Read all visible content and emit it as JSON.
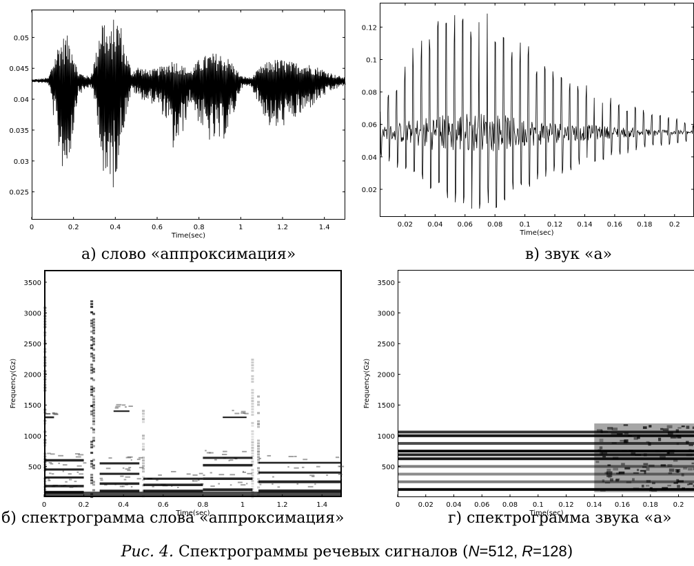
{
  "chart_data": [
    {
      "id": "a",
      "type": "line",
      "title": "",
      "xlabel": "Time(sec)",
      "ylabel": "",
      "xlim": [
        0,
        1.5
      ],
      "ylim": [
        0.0205,
        0.0545
      ],
      "xticks": [
        0,
        0.2,
        0.4,
        0.6,
        0.8,
        1,
        1.2,
        1.4
      ],
      "xtick_labels": [
        "0",
        "0.2",
        "0.4",
        "0.6",
        "0.8",
        "1",
        "1.2",
        "1.4"
      ],
      "yticks": [
        0.025,
        0.03,
        0.035,
        0.04,
        0.045,
        0.05
      ],
      "ytick_labels": [
        "0.025",
        "0.03",
        "0.035",
        "0.04",
        "0.045",
        "0.05"
      ],
      "baseline": 0.043,
      "envelope": {
        "x": [
          0,
          0.08,
          0.1,
          0.13,
          0.16,
          0.19,
          0.22,
          0.28,
          0.31,
          0.33,
          0.35,
          0.37,
          0.39,
          0.42,
          0.45,
          0.48,
          0.5,
          0.55,
          0.6,
          0.65,
          0.68,
          0.72,
          0.76,
          0.8,
          0.85,
          0.9,
          0.95,
          1.0,
          1.05,
          1.1,
          1.15,
          1.2,
          1.25,
          1.3,
          1.35,
          1.4,
          1.45,
          1.5
        ],
        "max": [
          0.0432,
          0.0435,
          0.046,
          0.0495,
          0.0505,
          0.05,
          0.0445,
          0.0436,
          0.048,
          0.054,
          0.0535,
          0.05,
          0.053,
          0.0535,
          0.048,
          0.0445,
          0.0455,
          0.0448,
          0.045,
          0.046,
          0.0465,
          0.0455,
          0.0447,
          0.0465,
          0.0475,
          0.0475,
          0.0465,
          0.0438,
          0.0435,
          0.0455,
          0.0465,
          0.0465,
          0.046,
          0.046,
          0.0455,
          0.0448,
          0.044,
          0.0435
        ],
        "min": [
          0.0428,
          0.0425,
          0.038,
          0.031,
          0.027,
          0.032,
          0.0405,
          0.042,
          0.038,
          0.032,
          0.0205,
          0.028,
          0.025,
          0.031,
          0.037,
          0.0415,
          0.0405,
          0.0395,
          0.039,
          0.036,
          0.031,
          0.034,
          0.0395,
          0.036,
          0.033,
          0.0325,
          0.035,
          0.0418,
          0.042,
          0.038,
          0.0345,
          0.0355,
          0.0365,
          0.0375,
          0.039,
          0.0405,
          0.0415,
          0.0422
        ]
      }
    },
    {
      "id": "v",
      "type": "line",
      "title": "",
      "xlabel": "Time(sec)",
      "ylabel": "",
      "xlim": [
        0.003,
        0.213
      ],
      "ylim": [
        0.003,
        0.135
      ],
      "xticks": [
        0.02,
        0.04,
        0.06,
        0.08,
        0.1,
        0.12,
        0.14,
        0.16,
        0.18,
        0.2
      ],
      "xtick_labels": [
        "0.02",
        "0.04",
        "0.06",
        "0.08",
        "0.1",
        "0.12",
        "0.14",
        "0.16",
        "0.18",
        "0.2"
      ],
      "yticks": [
        0.02,
        0.04,
        0.06,
        0.08,
        0.1,
        0.12
      ],
      "ytick_labels": [
        "0.02",
        "0.04",
        "0.06",
        "0.08",
        "0.1",
        "0.12"
      ],
      "baseline": 0.055,
      "pulse_period": 0.0055,
      "peaks": {
        "x": [
          0.003,
          0.02,
          0.03,
          0.04,
          0.05,
          0.06,
          0.07,
          0.08,
          0.09,
          0.1,
          0.12,
          0.14,
          0.16,
          0.18,
          0.2,
          0.213
        ],
        "max": [
          0.07,
          0.1,
          0.115,
          0.125,
          0.128,
          0.132,
          0.13,
          0.128,
          0.12,
          0.11,
          0.095,
          0.085,
          0.075,
          0.07,
          0.065,
          0.06
        ],
        "min": [
          0.04,
          0.03,
          0.022,
          0.015,
          0.01,
          0.008,
          0.008,
          0.008,
          0.015,
          0.02,
          0.028,
          0.035,
          0.04,
          0.045,
          0.048,
          0.05
        ]
      }
    },
    {
      "id": "b",
      "type": "heatmap",
      "title": "",
      "xlabel": "Time(sec)",
      "ylabel": "Frequency(Gz)",
      "xlim": [
        0,
        1.5
      ],
      "ylim": [
        0,
        3700
      ],
      "xticks": [
        0,
        0.2,
        0.4,
        0.6,
        0.8,
        1,
        1.2,
        1.4
      ],
      "xtick_labels": [
        "0",
        "0.2",
        "0.4",
        "0.6",
        "0.8",
        "1",
        "1.2",
        "1.4"
      ],
      "yticks": [
        500,
        1000,
        1500,
        2000,
        2500,
        3000,
        3500
      ],
      "ytick_labels": [
        "500",
        "1000",
        "1500",
        "2000",
        "2500",
        "3000",
        "3500"
      ],
      "dark_bands": [
        {
          "x0": 0.0,
          "x1": 0.2,
          "f": 80,
          "w": 45
        },
        {
          "x0": 0.0,
          "x1": 0.2,
          "f": 180,
          "w": 40
        },
        {
          "x0": 0.0,
          "x1": 0.2,
          "f": 320,
          "w": 35
        },
        {
          "x0": 0.0,
          "x1": 0.2,
          "f": 450,
          "w": 35
        },
        {
          "x0": 0.0,
          "x1": 0.2,
          "f": 600,
          "w": 40
        },
        {
          "x0": 0.28,
          "x1": 0.48,
          "f": 100,
          "w": 45
        },
        {
          "x0": 0.28,
          "x1": 0.48,
          "f": 220,
          "w": 40
        },
        {
          "x0": 0.28,
          "x1": 0.48,
          "f": 380,
          "w": 35
        },
        {
          "x0": 0.28,
          "x1": 0.48,
          "f": 550,
          "w": 35
        },
        {
          "x0": 0.5,
          "x1": 0.8,
          "f": 100,
          "w": 45
        },
        {
          "x0": 0.5,
          "x1": 0.8,
          "f": 200,
          "w": 40
        },
        {
          "x0": 0.5,
          "x1": 0.8,
          "f": 300,
          "w": 35
        },
        {
          "x0": 0.8,
          "x1": 1.05,
          "f": 120,
          "w": 45
        },
        {
          "x0": 0.8,
          "x1": 1.05,
          "f": 300,
          "w": 40
        },
        {
          "x0": 0.8,
          "x1": 1.05,
          "f": 520,
          "w": 40
        },
        {
          "x0": 0.8,
          "x1": 1.05,
          "f": 640,
          "w": 35
        },
        {
          "x0": 1.08,
          "x1": 1.5,
          "f": 100,
          "w": 50
        },
        {
          "x0": 1.08,
          "x1": 1.5,
          "f": 250,
          "w": 45
        },
        {
          "x0": 1.08,
          "x1": 1.5,
          "f": 400,
          "w": 35
        },
        {
          "x0": 1.08,
          "x1": 1.5,
          "f": 560,
          "w": 30
        },
        {
          "x0": 0.0,
          "x1": 0.05,
          "f": 1300,
          "w": 30
        },
        {
          "x0": 0.35,
          "x1": 0.43,
          "f": 1400,
          "w": 25
        },
        {
          "x0": 0.9,
          "x1": 1.02,
          "f": 1300,
          "w": 25
        }
      ],
      "vertical_streaks": [
        {
          "x": 0.005,
          "f0": 0,
          "f1": 3100,
          "strength": 0.5
        },
        {
          "x": 0.24,
          "f0": 0,
          "f1": 3250,
          "strength": 0.9
        },
        {
          "x": 0.25,
          "f0": 0,
          "f1": 3000,
          "strength": 0.7
        },
        {
          "x": 0.5,
          "f0": 0,
          "f1": 1600,
          "strength": 0.3
        },
        {
          "x": 1.05,
          "f0": 0,
          "f1": 2300,
          "strength": 0.25
        },
        {
          "x": 1.08,
          "f0": 0,
          "f1": 1700,
          "strength": 0.4
        }
      ]
    },
    {
      "id": "g",
      "type": "heatmap",
      "title": "",
      "xlabel": "Time(sec)",
      "ylabel": "Frequency(Gz)",
      "xlim": [
        0,
        0.212
      ],
      "ylim": [
        0,
        3700
      ],
      "xticks": [
        0,
        0.02,
        0.04,
        0.06,
        0.08,
        0.1,
        0.12,
        0.14,
        0.16,
        0.18,
        0.2
      ],
      "xtick_labels": [
        "0",
        "0.02",
        "0.04",
        "0.06",
        "0.08",
        "0.1",
        "0.12",
        "0.14",
        "0.16",
        "0.18",
        "0.2"
      ],
      "yticks": [
        500,
        1000,
        1500,
        2000,
        2500,
        3000,
        3500
      ],
      "ytick_labels": [
        "500",
        "1000",
        "1500",
        "2000",
        "2500",
        "3000",
        "3500"
      ],
      "harmonics_hz": [
        125,
        250,
        375,
        500,
        625,
        690,
        750,
        875,
        1000,
        1060
      ],
      "harmonic_strength": [
        0.95,
        0.5,
        0.45,
        0.5,
        0.9,
        0.85,
        0.95,
        0.7,
        0.9,
        0.8
      ],
      "late_energy_from": 0.14
    }
  ],
  "captions": {
    "a": "а) слово «аппроксимация»",
    "v": "в) звук «а»",
    "b": "б) спектрограмма слова «аппроксимация»",
    "g": "г) спектрограмма звука «а»"
  },
  "figure_caption": {
    "prefix": "Рис. 4.",
    "text": " Спектрограммы речевых сигналов (",
    "n_sym": "N",
    "n_val": "=512, ",
    "r_sym": "R",
    "r_val": "=128",
    "close": ")"
  }
}
